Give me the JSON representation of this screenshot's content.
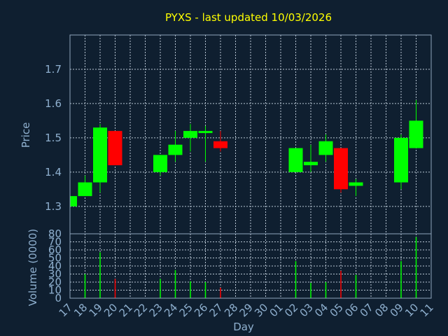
{
  "chart_data": [
    {
      "type": "candlestick",
      "title": "PYXS - last updated 10/03/2026",
      "ylabel": "Price",
      "ylim": [
        1.22,
        1.8
      ],
      "yticks": [
        1.3,
        1.4,
        1.5,
        1.6,
        1.7
      ],
      "categories": [
        "17",
        "18",
        "19",
        "20",
        "21",
        "22",
        "23",
        "24",
        "25",
        "26",
        "27",
        "28",
        "29",
        "30",
        "01",
        "02",
        "03",
        "04",
        "05",
        "06",
        "07",
        "08",
        "09",
        "10",
        "11"
      ],
      "series": [
        {
          "values": [
            {
              "x": "17",
              "open": 1.3,
              "high": 1.33,
              "low": 1.3,
              "close": 1.33
            },
            {
              "x": "18",
              "open": 1.33,
              "high": 1.39,
              "low": 1.33,
              "close": 1.37
            },
            {
              "x": "19",
              "open": 1.37,
              "high": 1.54,
              "low": 1.34,
              "close": 1.53
            },
            {
              "x": "20",
              "open": 1.52,
              "high": 1.52,
              "low": 1.42,
              "close": 1.42
            },
            {
              "x": "23",
              "open": 1.4,
              "high": 1.45,
              "low": 1.39,
              "close": 1.45
            },
            {
              "x": "24",
              "open": 1.45,
              "high": 1.52,
              "low": 1.43,
              "close": 1.48
            },
            {
              "x": "25",
              "open": 1.5,
              "high": 1.54,
              "low": 1.46,
              "close": 1.52
            },
            {
              "x": "26",
              "open": 1.515,
              "high": 1.535,
              "low": 1.43,
              "close": 1.52
            },
            {
              "x": "27",
              "open": 1.49,
              "high": 1.52,
              "low": 1.46,
              "close": 1.47
            },
            {
              "x": "02",
              "open": 1.4,
              "high": 1.47,
              "low": 1.4,
              "close": 1.47
            },
            {
              "x": "03",
              "open": 1.42,
              "high": 1.48,
              "low": 1.4,
              "close": 1.43
            },
            {
              "x": "04",
              "open": 1.45,
              "high": 1.51,
              "low": 1.43,
              "close": 1.49
            },
            {
              "x": "05",
              "open": 1.47,
              "high": 1.47,
              "low": 1.34,
              "close": 1.35
            },
            {
              "x": "06",
              "open": 1.36,
              "high": 1.38,
              "low": 1.33,
              "close": 1.37
            },
            {
              "x": "09",
              "open": 1.37,
              "high": 1.51,
              "low": 1.35,
              "close": 1.5
            },
            {
              "x": "10",
              "open": 1.47,
              "high": 1.61,
              "low": 1.47,
              "close": 1.55
            }
          ]
        }
      ],
      "colors": {
        "up": "#00ff00",
        "down": "#ff0000"
      },
      "grid": true
    },
    {
      "type": "bar",
      "ylabel": "Volume (0000)",
      "xlabel": "Day",
      "ylim": [
        0,
        80
      ],
      "yticks": [
        0,
        10,
        20,
        30,
        40,
        50,
        60,
        70,
        80
      ],
      "categories": [
        "17",
        "18",
        "19",
        "20",
        "21",
        "22",
        "23",
        "24",
        "25",
        "26",
        "27",
        "28",
        "29",
        "30",
        "01",
        "02",
        "03",
        "04",
        "05",
        "06",
        "07",
        "08",
        "09",
        "10",
        "11"
      ],
      "series": [
        {
          "values": [
            0,
            30,
            57,
            24,
            0,
            0,
            24,
            35,
            21,
            20,
            13,
            0,
            0,
            0,
            0,
            46,
            19,
            20,
            34,
            29,
            0,
            0,
            46,
            76,
            0
          ],
          "directions": [
            "",
            "up",
            "up",
            "down",
            "",
            "",
            "up",
            "up",
            "up",
            "up",
            "down",
            "",
            "",
            "",
            "",
            "up",
            "up",
            "up",
            "down",
            "up",
            "",
            "",
            "up",
            "up",
            ""
          ]
        }
      ],
      "grid": true
    }
  ]
}
